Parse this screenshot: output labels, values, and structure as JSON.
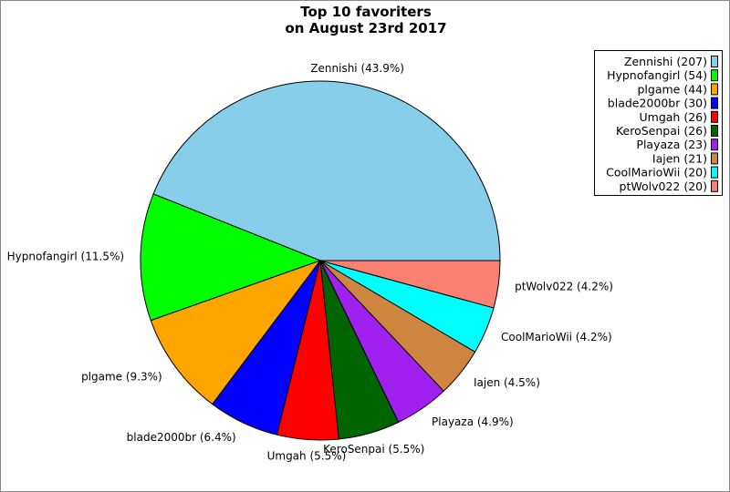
{
  "chart_data": {
    "type": "pie",
    "title": "Top 10 favoriters",
    "subtitle": "on August 23rd 2017",
    "start_angle_deg": 0,
    "direction": "counterclockwise",
    "legend_position": "top-right",
    "slices": [
      {
        "name": "Zennishi",
        "value": 207,
        "percent_label": "Zennishi (43.9%)",
        "legend_label": "Zennishi (207)",
        "color": "#87ceeb"
      },
      {
        "name": "Hypnofangirl",
        "value": 54,
        "percent_label": "Hypnofangirl (11.5%)",
        "legend_label": "Hypnofangirl (54)",
        "color": "#00ff00"
      },
      {
        "name": "plgame",
        "value": 44,
        "percent_label": "plgame (9.3%)",
        "legend_label": "plgame (44)",
        "color": "#ffa500"
      },
      {
        "name": "blade2000br",
        "value": 30,
        "percent_label": "blade2000br (6.4%)",
        "legend_label": "blade2000br (30)",
        "color": "#0000ff"
      },
      {
        "name": "Umgah",
        "value": 26,
        "percent_label": "Umgah (5.5%)",
        "legend_label": "Umgah (26)",
        "color": "#ff0000"
      },
      {
        "name": "KeroSenpai",
        "value": 26,
        "percent_label": "KeroSenpai (5.5%)",
        "legend_label": "KeroSenpai (26)",
        "color": "#006400"
      },
      {
        "name": "Playaza",
        "value": 23,
        "percent_label": "Playaza (4.9%)",
        "legend_label": "Playaza (23)",
        "color": "#a020f0"
      },
      {
        "name": "Iajen",
        "value": 21,
        "percent_label": "Iajen (4.5%)",
        "legend_label": "Iajen (21)",
        "color": "#cd853f"
      },
      {
        "name": "CoolMarioWii",
        "value": 20,
        "percent_label": "CoolMarioWii (4.2%)",
        "legend_label": "CoolMarioWii (20)",
        "color": "#00ffff"
      },
      {
        "name": "ptWolv022",
        "value": 20,
        "percent_label": "ptWolv022 (4.2%)",
        "legend_label": "ptWolv022 (20)",
        "color": "#fa8072"
      }
    ]
  }
}
